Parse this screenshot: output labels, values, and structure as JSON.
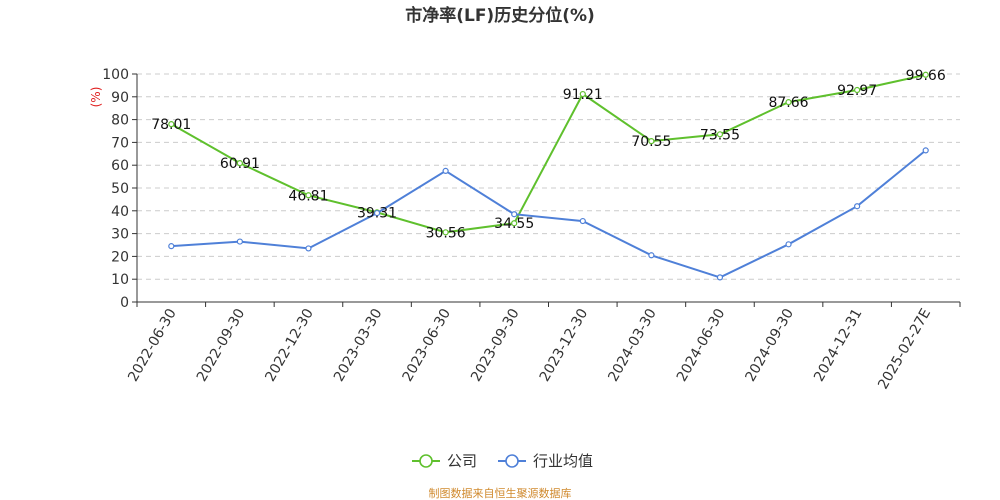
{
  "chart_data": {
    "type": "line",
    "title": "市净率(LF)历史分位(%)",
    "ylabel": "(%)",
    "xlabel": "",
    "categories": [
      "2022-06-30",
      "2022-09-30",
      "2022-12-30",
      "2023-03-30",
      "2023-06-30",
      "2023-09-30",
      "2023-12-30",
      "2024-03-30",
      "2024-06-30",
      "2024-09-30",
      "2024-12-31",
      "2025-02-27E"
    ],
    "ylim": [
      0,
      100
    ],
    "yticks": [
      0,
      10,
      20,
      30,
      40,
      50,
      60,
      70,
      80,
      90,
      100
    ],
    "grid": true,
    "legend_position": "bottom-center",
    "series": [
      {
        "name": "公司",
        "color": "#5fc02d",
        "show_labels": true,
        "values": [
          78.01,
          60.91,
          46.81,
          39.31,
          30.56,
          34.55,
          91.21,
          70.55,
          73.55,
          87.66,
          92.97,
          99.66
        ]
      },
      {
        "name": "行业均值",
        "color": "#4f80d8",
        "show_labels": false,
        "values": [
          24.5,
          26.5,
          23.5,
          39.0,
          57.5,
          38.5,
          35.5,
          20.5,
          10.8,
          25.3,
          42.0,
          66.5
        ]
      }
    ]
  },
  "source_note": "制图数据来自恒生聚源数据库"
}
